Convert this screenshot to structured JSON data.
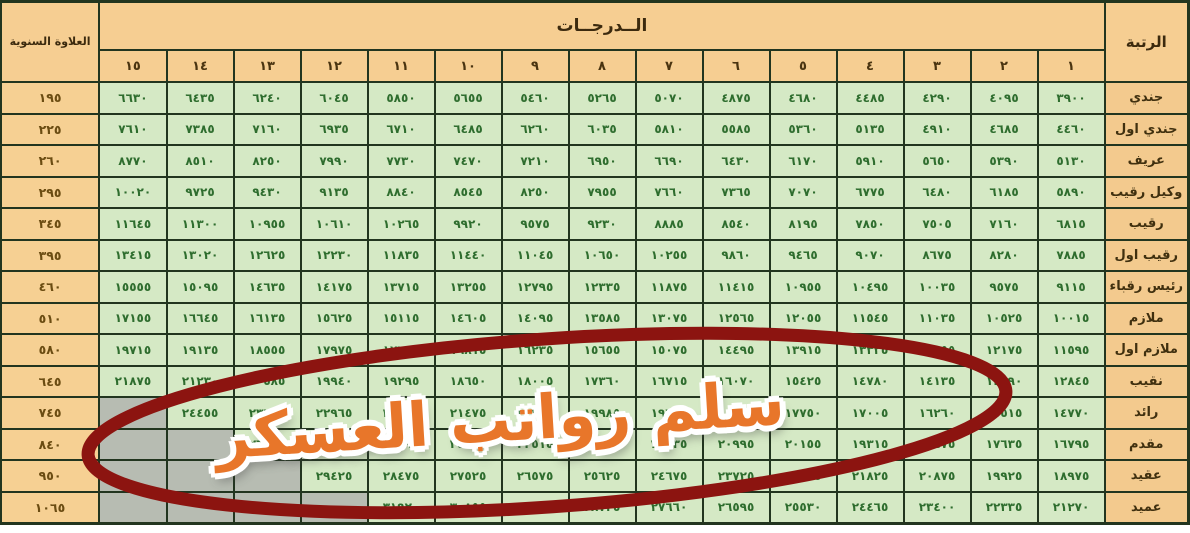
{
  "overlay": {
    "title": "سلم رواتب العسكر",
    "ellipse_color": "#8c1410",
    "text_color": "#e8762a"
  },
  "table": {
    "header": {
      "rank": "الرتبة",
      "grades_title": "الــدرجــات",
      "allowance": "العلاوة السنوية",
      "grade_numbers": [
        1,
        2,
        3,
        4,
        5,
        6,
        7,
        8,
        9,
        10,
        11,
        12,
        13,
        14,
        15
      ]
    },
    "rows": [
      {
        "rank": "جندي",
        "allowance": 195,
        "salaries": [
          3900,
          4095,
          4290,
          4485,
          4680,
          4875,
          5070,
          5265,
          5460,
          5655,
          5850,
          6045,
          6240,
          6435,
          6630
        ]
      },
      {
        "rank": "جندي اول",
        "allowance": 225,
        "salaries": [
          4460,
          4685,
          4910,
          5135,
          5360,
          5585,
          5810,
          6035,
          6260,
          6485,
          6710,
          6935,
          7160,
          7385,
          7610
        ]
      },
      {
        "rank": "عريف",
        "allowance": 260,
        "salaries": [
          5130,
          5390,
          5650,
          5910,
          6170,
          6430,
          6690,
          6950,
          7210,
          7470,
          7730,
          7990,
          8250,
          8510,
          8770
        ]
      },
      {
        "rank": "وكيل رقيب",
        "allowance": 295,
        "salaries": [
          5890,
          6185,
          6480,
          6775,
          7070,
          7365,
          7660,
          7955,
          8250,
          8545,
          8840,
          9135,
          9430,
          9725,
          10020
        ]
      },
      {
        "rank": "رقيب",
        "allowance": 345,
        "salaries": [
          6815,
          7160,
          7505,
          7850,
          8195,
          8540,
          8885,
          9230,
          9575,
          9920,
          10265,
          10610,
          10955,
          11300,
          11645
        ]
      },
      {
        "rank": "رقيب اول",
        "allowance": 395,
        "salaries": [
          7885,
          8280,
          8675,
          9070,
          9465,
          9860,
          10255,
          10650,
          11045,
          11440,
          11835,
          12230,
          12625,
          13020,
          13415
        ]
      },
      {
        "rank": "رئيس رقباء",
        "allowance": 460,
        "salaries": [
          9115,
          9575,
          10035,
          10495,
          10955,
          11415,
          11875,
          12335,
          12795,
          13255,
          13715,
          14175,
          14635,
          15095,
          15555
        ]
      },
      {
        "rank": "ملازم",
        "allowance": 510,
        "salaries": [
          10015,
          10525,
          11035,
          11545,
          12055,
          12565,
          13075,
          13585,
          14095,
          14605,
          15115,
          15625,
          16135,
          16645,
          17155
        ]
      },
      {
        "rank": "ملازم اول",
        "allowance": 580,
        "salaries": [
          11595,
          12175,
          12755,
          13335,
          13915,
          14495,
          15075,
          15655,
          16235,
          16815,
          17395,
          17975,
          18555,
          19135,
          19715
        ]
      },
      {
        "rank": "نقيب",
        "allowance": 645,
        "salaries": [
          12845,
          13490,
          14135,
          14780,
          15425,
          16070,
          16715,
          17360,
          18005,
          18650,
          19295,
          19940,
          20585,
          21230,
          21875
        ]
      },
      {
        "rank": "رائد",
        "allowance": 745,
        "salaries": [
          14770,
          15515,
          16260,
          17005,
          17750,
          18495,
          19240,
          19985,
          20730,
          21475,
          22220,
          22965,
          23710,
          24455,
          null
        ]
      },
      {
        "rank": "مقدم",
        "allowance": 840,
        "salaries": [
          16795,
          17635,
          18475,
          19315,
          20155,
          20995,
          21835,
          22675,
          23515,
          24355,
          25195,
          26035,
          26875,
          null,
          null
        ]
      },
      {
        "rank": "عقيد",
        "allowance": 950,
        "salaries": [
          18975,
          19925,
          20875,
          21825,
          22775,
          23725,
          24675,
          25625,
          26575,
          27525,
          28475,
          29425,
          null,
          null,
          null
        ]
      },
      {
        "rank": "عميد",
        "allowance": 1065,
        "salaries": [
          21270,
          22335,
          23400,
          24465,
          25530,
          26595,
          27660,
          28725,
          29790,
          30855,
          31920,
          null,
          null,
          null,
          null
        ]
      }
    ]
  },
  "colors": {
    "header_bg": "#f6ce92",
    "rank_bg": "#f3ca8e",
    "allowance_bg": "#f6d093",
    "cell_bg": "#d5e9c5",
    "cell_text": "#2e6d2e",
    "empty_cell_bg": "#b7bcb2",
    "border": "#22351f",
    "ellipse": "#8c1410",
    "overlay_text": "#e8762a"
  }
}
